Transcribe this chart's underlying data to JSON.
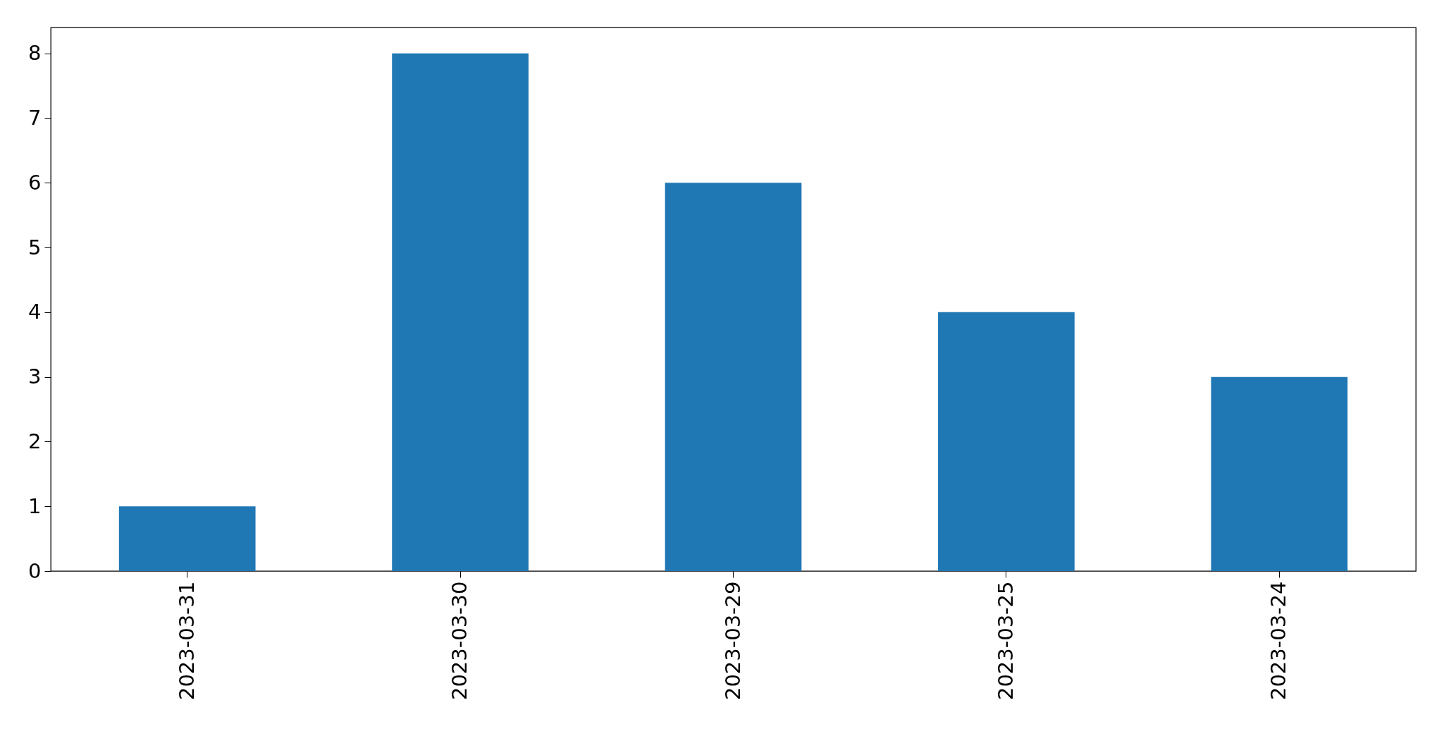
{
  "chart_data": {
    "type": "bar",
    "categories": [
      "2023-03-31",
      "2023-03-30",
      "2023-03-29",
      "2023-03-25",
      "2023-03-24"
    ],
    "values": [
      1,
      8,
      6,
      4,
      3
    ],
    "color": "#1f77b4",
    "ylim": [
      0,
      8.4
    ],
    "yticks": [
      0,
      1,
      2,
      3,
      4,
      5,
      6,
      7,
      8
    ],
    "grid": false
  }
}
